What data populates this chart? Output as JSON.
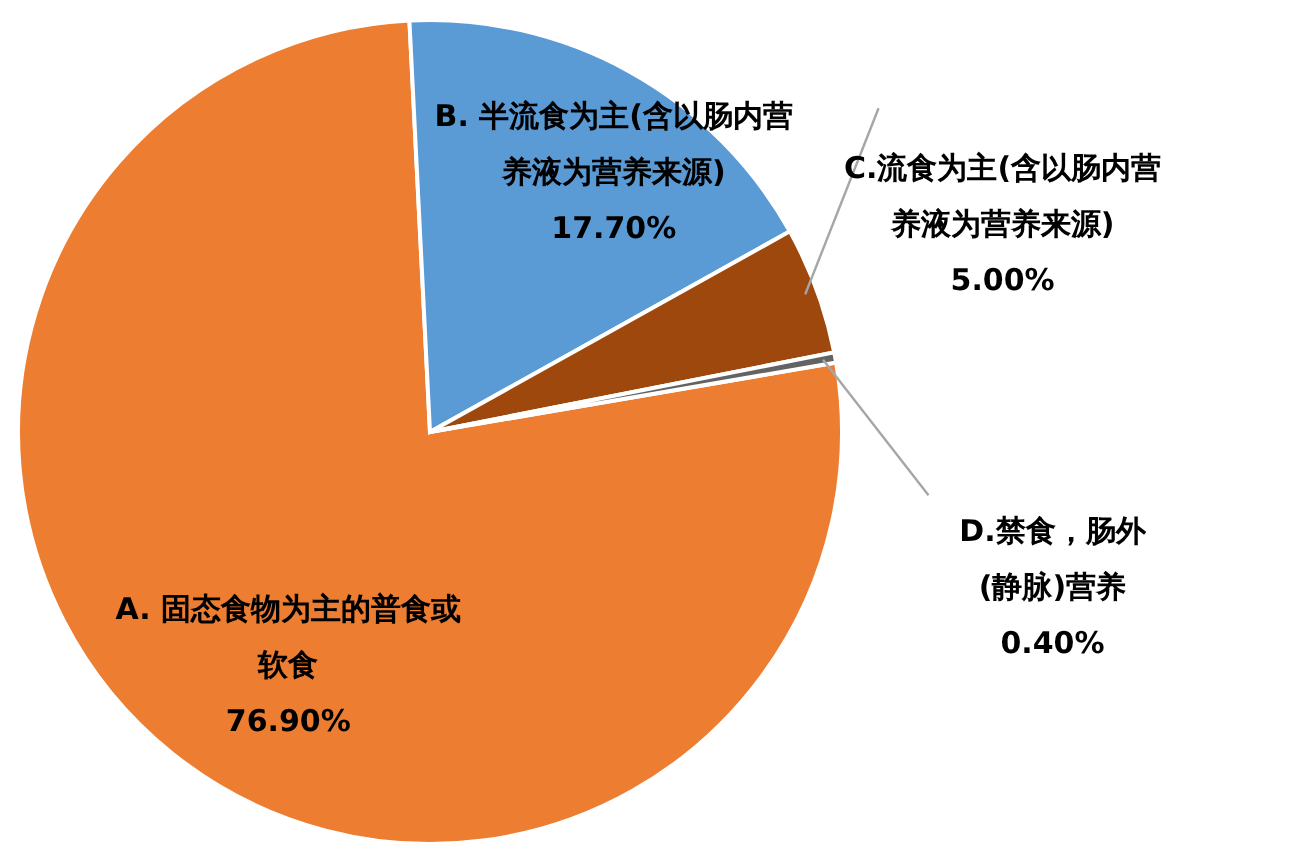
{
  "chart_data": {
    "type": "pie",
    "categories": [
      "A. 固态食物为主的普食或软食",
      "B. 半流食为主(含以肠内营养液为营养来源)",
      "C.流食为主(含以肠内营养液为营养来源)",
      "D.禁食，肠外(静脉)营养"
    ],
    "values": [
      76.9,
      17.7,
      5.0,
      0.4
    ],
    "value_labels": [
      "76.90%",
      "17.70%",
      "5.00%",
      "0.40%"
    ],
    "colors": [
      "#ed7d31",
      "#5b9bd5",
      "#9e480e",
      "#636363"
    ]
  }
}
